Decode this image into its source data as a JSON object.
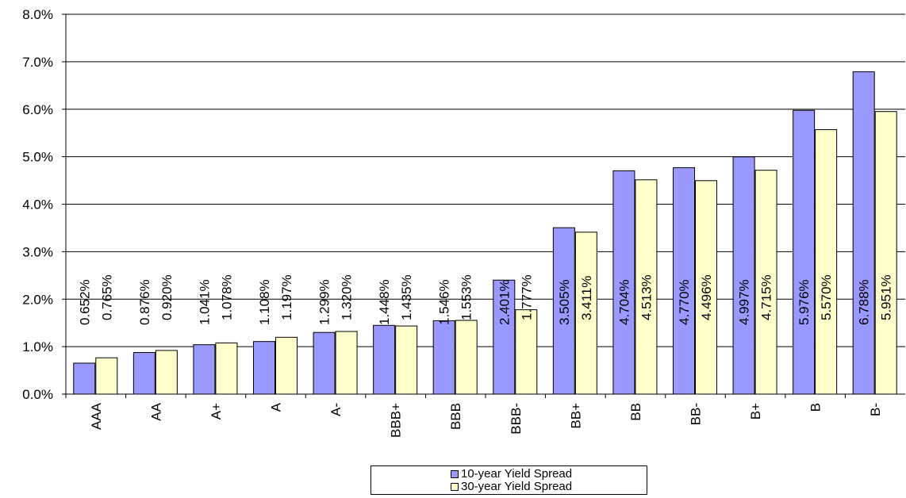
{
  "colors": {
    "series1": "#9999ff",
    "series2": "#ffffcc",
    "axis": "#000000",
    "grid": "#000000"
  },
  "chart_data": {
    "type": "bar",
    "title": "",
    "xlabel": "",
    "ylabel": "",
    "ylim": [
      0,
      8
    ],
    "y_ticks": [
      "0.0%",
      "1.0%",
      "2.0%",
      "3.0%",
      "4.0%",
      "5.0%",
      "6.0%",
      "7.0%",
      "8.0%"
    ],
    "grid": true,
    "legend_position": "bottom",
    "categories": [
      "AAA",
      "AA",
      "A+",
      "A",
      "A-",
      "BBB+",
      "BBB",
      "BBB-",
      "BB+",
      "BB",
      "BB-",
      "B+",
      "B",
      "B-"
    ],
    "series": [
      {
        "name": "10-year Yield Spread",
        "values": [
          0.652,
          0.876,
          1.041,
          1.108,
          1.299,
          1.448,
          1.546,
          2.401,
          3.505,
          4.704,
          4.77,
          4.997,
          5.976,
          6.788
        ],
        "labels": [
          "0.652%",
          "0.876%",
          "1.041%",
          "1.108%",
          "1.299%",
          "1.448%",
          "1.546%",
          "2.401%",
          "3.505%",
          "4.704%",
          "4.770%",
          "4.997%",
          "5.976%",
          "6.788%"
        ]
      },
      {
        "name": "30-year Yield Spread",
        "values": [
          0.765,
          0.92,
          1.078,
          1.197,
          1.32,
          1.435,
          1.553,
          1.777,
          3.411,
          4.513,
          4.496,
          4.715,
          5.57,
          5.951
        ],
        "labels": [
          "0.765%",
          "0.920%",
          "1.078%",
          "1.197%",
          "1.320%",
          "1.435%",
          "1.553%",
          "1.777%",
          "3.411%",
          "4.513%",
          "4.496%",
          "4.715%",
          "5.570%",
          "5.951%"
        ]
      }
    ]
  }
}
